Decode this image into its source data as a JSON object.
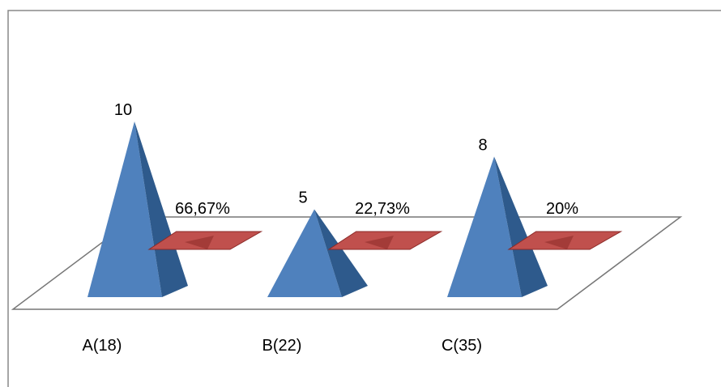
{
  "chart_data": {
    "type": "bar",
    "style": "3d-pyramid",
    "categories": [
      "A(18)",
      "B(22)",
      "C(35)"
    ],
    "series": [
      {
        "values": [
          10,
          5,
          8
        ],
        "data_labels": [
          "10",
          "5",
          "8"
        ],
        "color": "#4F81BD"
      },
      {
        "values": [
          66.67,
          22.73,
          20
        ],
        "data_labels": [
          "66,67%",
          "22,73%",
          "20%"
        ],
        "color": "#C0504D"
      }
    ],
    "title": "",
    "xlabel": "",
    "ylabel": "",
    "grid": false,
    "legend": "none"
  },
  "colors": {
    "series_a": "#4F81BD",
    "series_a_dark": "#2E5A8C",
    "series_b": "#C0504D",
    "series_b_dark": "#8B2A28",
    "frame": "#888888"
  }
}
